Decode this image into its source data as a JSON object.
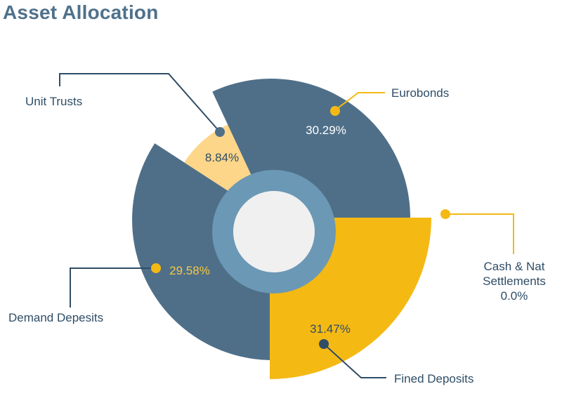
{
  "title": "Asset Allocation",
  "chart_data": {
    "type": "pie",
    "variant": "donut with exploded segments",
    "title": "Asset Allocation",
    "slices": [
      {
        "label": "Eurobonds",
        "value": 30.29,
        "display": "30.29%",
        "color": "#4f6f89"
      },
      {
        "label": "Fixed Deposits",
        "value": 31.47,
        "display": "31.47%",
        "color": "#f5b914"
      },
      {
        "label": "Demand Deposits",
        "value": 29.58,
        "display": "29.58%",
        "color": "#4f6f89"
      },
      {
        "label": "Unit Trusts",
        "value": 8.84,
        "display": "8.84%",
        "color": "#fdd689"
      },
      {
        "label": "Cash & Nat Settlements",
        "value": 0.0,
        "display": "0.0%",
        "color": "#f5b914"
      }
    ],
    "legend": "none (callout labels)"
  },
  "callouts": {
    "unit_trusts": "Unit Trusts",
    "eurobonds": "Eurobonds",
    "cash_line1": "Cash & Nat",
    "cash_line2": "Settlements",
    "cash_value": "0.0%",
    "demand_deposits": "Demand Depesits",
    "fixed_deposits": "Fined Deposits"
  },
  "inner_labels": {
    "unit_trusts": "8.84%",
    "eurobonds": "30.29%",
    "demand_deposits": "29.58%",
    "fixed_deposits": "31.47%"
  },
  "colors": {
    "slate": "#4f6f89",
    "gold": "#f5b914",
    "pale_gold": "#fdd689",
    "ring": "#6b98b5",
    "hole": "#f0f0f0",
    "callout_line": "#2f4d66"
  }
}
